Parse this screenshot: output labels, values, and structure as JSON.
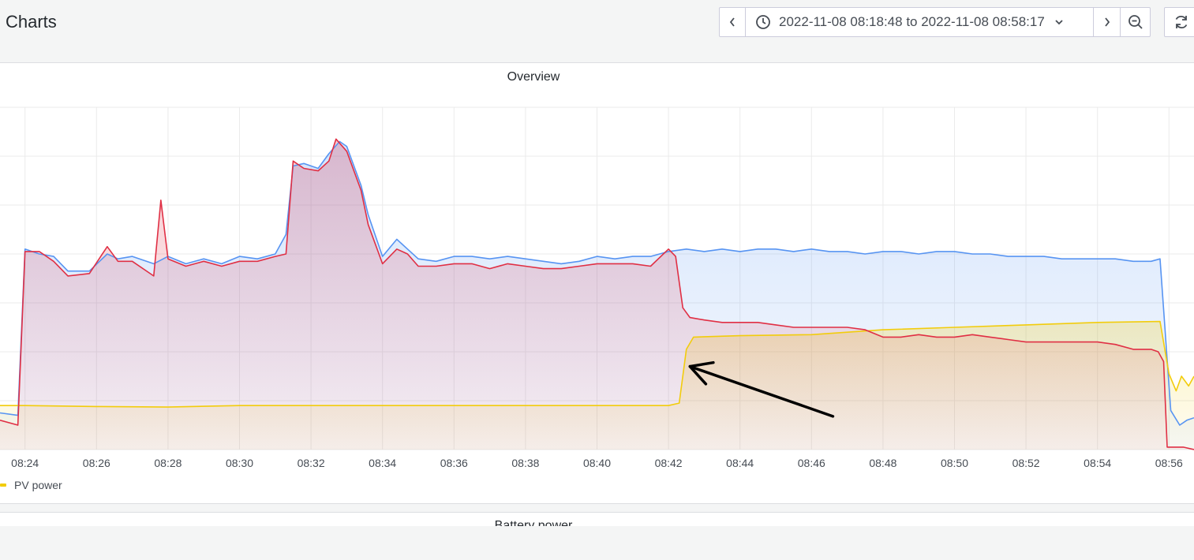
{
  "header": {
    "title": "Charts",
    "time_range": "2022-11-08 08:18:48 to 2022-11-08 08:58:17"
  },
  "panels": {
    "overview": {
      "title": "Overview"
    },
    "battery": {
      "title": "Battery power"
    }
  },
  "icons": {
    "prev": "chevron-left-icon",
    "clock": "clock-icon",
    "caret": "chevron-down-icon",
    "next": "chevron-right-icon",
    "zoom": "zoom-out-icon",
    "refresh": "refresh-icon",
    "annotation": "arrow-icon"
  },
  "colors": {
    "blue": "#5794f2",
    "red": "#e02f44",
    "yellow": "#f2cc0c",
    "grid": "#ebebeb",
    "arrow": "#000000"
  },
  "chart_data": {
    "type": "area",
    "title": "Overview",
    "xlabel": "",
    "ylabel": "",
    "xlim": [
      "08:23.3",
      "08:56.7"
    ],
    "ylim": [
      0,
      7
    ],
    "x_ticks": [
      "08:24",
      "08:26",
      "08:28",
      "08:30",
      "08:32",
      "08:34",
      "08:36",
      "08:38",
      "08:40",
      "08:42",
      "08:44",
      "08:46",
      "08:48",
      "08:50",
      "08:52",
      "08:54",
      "08:56"
    ],
    "grid": true,
    "legend": {
      "position": "bottom-left",
      "entries": [
        "PV power"
      ]
    },
    "series": [
      {
        "color": "#5794f2",
        "fill": true,
        "points": [
          [
            23.3,
            0.75
          ],
          [
            23.8,
            0.7
          ],
          [
            24.0,
            4.1
          ],
          [
            24.4,
            4.0
          ],
          [
            24.8,
            3.95
          ],
          [
            25.2,
            3.65
          ],
          [
            25.8,
            3.65
          ],
          [
            26.3,
            4.0
          ],
          [
            26.6,
            3.9
          ],
          [
            27.0,
            3.95
          ],
          [
            27.6,
            3.8
          ],
          [
            28.0,
            3.95
          ],
          [
            28.5,
            3.8
          ],
          [
            29.0,
            3.9
          ],
          [
            29.5,
            3.8
          ],
          [
            30.0,
            3.95
          ],
          [
            30.5,
            3.9
          ],
          [
            31.0,
            4.0
          ],
          [
            31.3,
            4.4
          ],
          [
            31.5,
            5.8
          ],
          [
            31.8,
            5.85
          ],
          [
            32.2,
            5.75
          ],
          [
            32.5,
            6.05
          ],
          [
            32.8,
            6.3
          ],
          [
            33.0,
            6.2
          ],
          [
            33.4,
            5.4
          ],
          [
            33.6,
            4.8
          ],
          [
            34.0,
            3.95
          ],
          [
            34.4,
            4.3
          ],
          [
            34.7,
            4.1
          ],
          [
            35.0,
            3.9
          ],
          [
            35.5,
            3.85
          ],
          [
            36.0,
            3.95
          ],
          [
            36.5,
            3.95
          ],
          [
            37.0,
            3.9
          ],
          [
            37.5,
            3.95
          ],
          [
            38.0,
            3.9
          ],
          [
            38.5,
            3.85
          ],
          [
            39.0,
            3.8
          ],
          [
            39.5,
            3.85
          ],
          [
            40.0,
            3.95
          ],
          [
            40.5,
            3.9
          ],
          [
            41.0,
            3.95
          ],
          [
            41.5,
            3.95
          ],
          [
            42.0,
            4.05
          ],
          [
            42.5,
            4.1
          ],
          [
            43.0,
            4.05
          ],
          [
            43.5,
            4.1
          ],
          [
            44.0,
            4.05
          ],
          [
            44.5,
            4.1
          ],
          [
            45.0,
            4.1
          ],
          [
            45.5,
            4.05
          ],
          [
            46.0,
            4.1
          ],
          [
            46.5,
            4.05
          ],
          [
            47.0,
            4.05
          ],
          [
            47.5,
            4.0
          ],
          [
            48.0,
            4.05
          ],
          [
            48.5,
            4.05
          ],
          [
            49.0,
            4.0
          ],
          [
            49.5,
            4.05
          ],
          [
            50.0,
            4.05
          ],
          [
            50.5,
            4.0
          ],
          [
            51.0,
            4.0
          ],
          [
            51.5,
            3.95
          ],
          [
            52.0,
            3.95
          ],
          [
            52.5,
            3.95
          ],
          [
            53.0,
            3.9
          ],
          [
            53.5,
            3.9
          ],
          [
            54.0,
            3.9
          ],
          [
            54.5,
            3.9
          ],
          [
            55.0,
            3.85
          ],
          [
            55.5,
            3.85
          ],
          [
            55.75,
            3.9
          ],
          [
            56.05,
            0.8
          ],
          [
            56.3,
            0.5
          ],
          [
            56.5,
            0.6
          ],
          [
            56.7,
            0.65
          ]
        ]
      },
      {
        "color": "#e02f44",
        "fill": true,
        "points": [
          [
            23.3,
            0.6
          ],
          [
            23.8,
            0.5
          ],
          [
            24.0,
            4.05
          ],
          [
            24.4,
            4.05
          ],
          [
            24.8,
            3.85
          ],
          [
            25.2,
            3.55
          ],
          [
            25.8,
            3.6
          ],
          [
            26.3,
            4.15
          ],
          [
            26.6,
            3.85
          ],
          [
            27.0,
            3.85
          ],
          [
            27.6,
            3.55
          ],
          [
            27.8,
            5.1
          ],
          [
            28.0,
            3.9
          ],
          [
            28.5,
            3.75
          ],
          [
            29.0,
            3.85
          ],
          [
            29.5,
            3.75
          ],
          [
            30.0,
            3.85
          ],
          [
            30.5,
            3.85
          ],
          [
            31.0,
            3.95
          ],
          [
            31.3,
            4.0
          ],
          [
            31.5,
            5.9
          ],
          [
            31.8,
            5.75
          ],
          [
            32.2,
            5.7
          ],
          [
            32.5,
            5.9
          ],
          [
            32.7,
            6.35
          ],
          [
            33.0,
            6.1
          ],
          [
            33.4,
            5.3
          ],
          [
            33.6,
            4.6
          ],
          [
            34.0,
            3.8
          ],
          [
            34.4,
            4.1
          ],
          [
            34.7,
            4.0
          ],
          [
            35.0,
            3.75
          ],
          [
            35.5,
            3.75
          ],
          [
            36.0,
            3.8
          ],
          [
            36.5,
            3.8
          ],
          [
            37.0,
            3.7
          ],
          [
            37.5,
            3.8
          ],
          [
            38.0,
            3.75
          ],
          [
            38.5,
            3.7
          ],
          [
            39.0,
            3.7
          ],
          [
            39.5,
            3.75
          ],
          [
            40.0,
            3.8
          ],
          [
            40.5,
            3.8
          ],
          [
            41.0,
            3.8
          ],
          [
            41.5,
            3.75
          ],
          [
            42.0,
            4.1
          ],
          [
            42.2,
            3.95
          ],
          [
            42.4,
            2.9
          ],
          [
            42.6,
            2.7
          ],
          [
            43.0,
            2.65
          ],
          [
            43.5,
            2.6
          ],
          [
            44.0,
            2.6
          ],
          [
            44.5,
            2.6
          ],
          [
            45.0,
            2.55
          ],
          [
            45.5,
            2.5
          ],
          [
            46.0,
            2.5
          ],
          [
            46.5,
            2.5
          ],
          [
            47.0,
            2.5
          ],
          [
            47.5,
            2.45
          ],
          [
            48.0,
            2.3
          ],
          [
            48.5,
            2.3
          ],
          [
            49.0,
            2.35
          ],
          [
            49.5,
            2.3
          ],
          [
            50.0,
            2.3
          ],
          [
            50.5,
            2.35
          ],
          [
            51.0,
            2.3
          ],
          [
            51.5,
            2.25
          ],
          [
            52.0,
            2.2
          ],
          [
            52.5,
            2.2
          ],
          [
            53.0,
            2.2
          ],
          [
            53.5,
            2.2
          ],
          [
            54.0,
            2.2
          ],
          [
            54.5,
            2.15
          ],
          [
            55.0,
            2.05
          ],
          [
            55.5,
            2.05
          ],
          [
            55.7,
            2.0
          ],
          [
            55.85,
            1.8
          ],
          [
            55.95,
            0.05
          ],
          [
            56.4,
            0.05
          ],
          [
            56.7,
            0.0
          ]
        ]
      },
      {
        "name": "PV power",
        "color": "#f2cc0c",
        "fill": true,
        "points": [
          [
            23.3,
            0.9
          ],
          [
            24.0,
            0.9
          ],
          [
            26.0,
            0.88
          ],
          [
            28.0,
            0.87
          ],
          [
            30.0,
            0.9
          ],
          [
            32.0,
            0.9
          ],
          [
            34.0,
            0.9
          ],
          [
            36.0,
            0.9
          ],
          [
            38.0,
            0.9
          ],
          [
            40.0,
            0.9
          ],
          [
            42.0,
            0.9
          ],
          [
            42.3,
            0.95
          ],
          [
            42.5,
            2.05
          ],
          [
            42.7,
            2.3
          ],
          [
            44.0,
            2.33
          ],
          [
            46.0,
            2.35
          ],
          [
            48.0,
            2.45
          ],
          [
            50.0,
            2.5
          ],
          [
            52.0,
            2.55
          ],
          [
            54.0,
            2.6
          ],
          [
            55.75,
            2.62
          ],
          [
            56.0,
            1.55
          ],
          [
            56.2,
            1.2
          ],
          [
            56.35,
            1.5
          ],
          [
            56.55,
            1.3
          ],
          [
            56.7,
            1.5
          ]
        ]
      }
    ],
    "annotations": [
      {
        "type": "arrow",
        "from": [
          46.6,
          0.68
        ],
        "to": [
          42.6,
          1.7
        ]
      }
    ]
  }
}
